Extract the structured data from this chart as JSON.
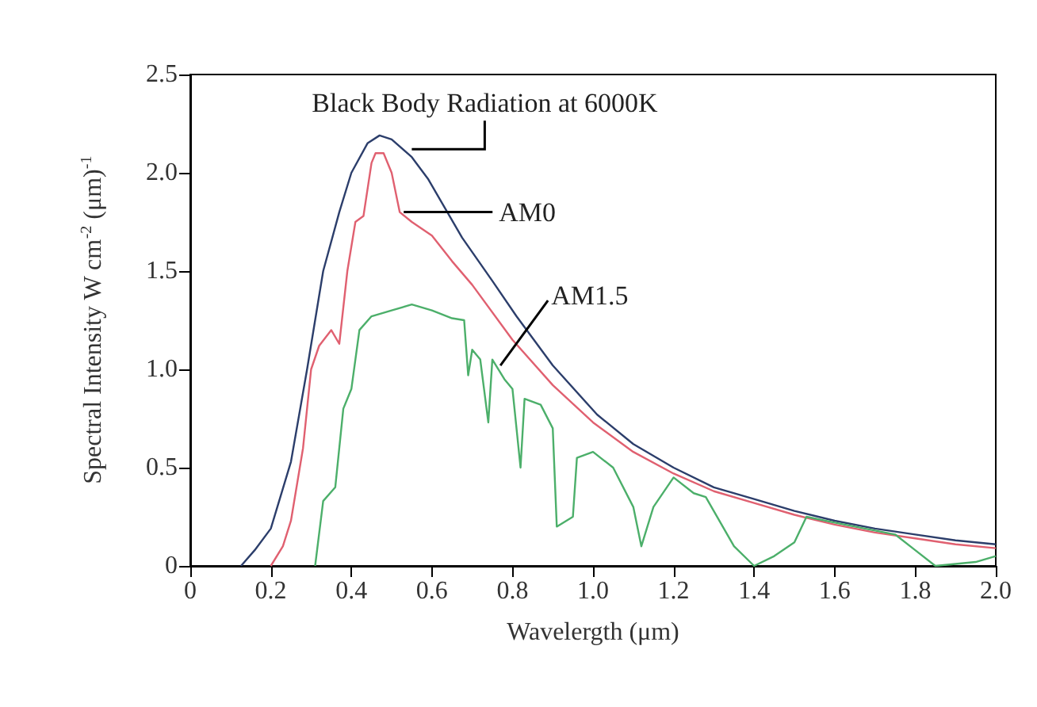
{
  "chart_data": {
    "type": "line",
    "xlabel": "Wavelergth (μm)",
    "ylabel": "Spectral Intensity W cm$^{-2}$ (μm)$^{-1}$",
    "xlim": [
      0,
      2.0
    ],
    "ylim": [
      0,
      2.5
    ],
    "xticks": [
      0,
      0.2,
      0.4,
      0.6,
      0.8,
      {
        "value": 1.0,
        "label": "1.0"
      },
      1.2,
      1.4,
      1.6,
      1.8,
      {
        "value": 2.0,
        "label": "2.0"
      }
    ],
    "yticks": [
      0,
      0.5,
      {
        "value": 1.0,
        "label": "1.0"
      },
      1.5,
      {
        "value": 2.0,
        "label": "2.0"
      },
      2.5
    ],
    "grid": false,
    "marker": "none",
    "line_style": "solid",
    "series": [
      {
        "color": "#2c3e6b",
        "x": [
          0.126,
          0.16,
          0.2,
          0.25,
          0.29,
          0.33,
          0.37,
          0.4,
          0.44,
          0.47,
          0.5,
          0.55,
          0.59,
          0.675,
          0.75,
          0.81,
          0.9,
          1.01,
          1.1,
          1.2,
          1.3,
          1.4,
          1.5,
          1.6,
          1.7,
          1.8,
          1.9,
          2.0
        ],
        "values": [
          0,
          0.08,
          0.19,
          0.53,
          1.0,
          1.5,
          1.8,
          2.0,
          2.15,
          2.19,
          2.17,
          2.08,
          1.97,
          1.67,
          1.45,
          1.27,
          1.02,
          0.77,
          0.62,
          0.5,
          0.4,
          0.34,
          0.28,
          0.23,
          0.19,
          0.16,
          0.13,
          0.11
        ]
      },
      {
        "color": "#e06070",
        "x": [
          0.2,
          0.23,
          0.25,
          0.28,
          0.3,
          0.32,
          0.35,
          0.37,
          0.39,
          0.41,
          0.43,
          0.45,
          0.46,
          0.48,
          0.5,
          0.52,
          0.55,
          0.6,
          0.65,
          0.7,
          0.8,
          0.9,
          1.0,
          1.1,
          1.2,
          1.3,
          1.4,
          1.5,
          1.6,
          1.7,
          1.8,
          1.9,
          2.0
        ],
        "values": [
          0,
          0.1,
          0.23,
          0.6,
          1.0,
          1.12,
          1.2,
          1.13,
          1.5,
          1.75,
          1.78,
          2.05,
          2.1,
          2.1,
          2.0,
          1.8,
          1.75,
          1.68,
          1.55,
          1.43,
          1.15,
          0.92,
          0.73,
          0.58,
          0.47,
          0.38,
          0.32,
          0.26,
          0.21,
          0.17,
          0.14,
          0.11,
          0.09
        ]
      },
      {
        "color": "#4caf6a",
        "x": [
          0.31,
          0.33,
          0.36,
          0.38,
          0.4,
          0.42,
          0.45,
          0.5,
          0.55,
          0.6,
          0.65,
          0.68,
          0.69,
          0.7,
          0.72,
          0.74,
          0.75,
          0.78,
          0.8,
          0.82,
          0.83,
          0.87,
          0.9,
          0.91,
          0.95,
          0.96,
          1.0,
          1.05,
          1.1,
          1.12,
          1.15,
          1.2,
          1.25,
          1.28,
          1.35,
          1.4,
          1.45,
          1.5,
          1.53,
          1.6,
          1.75,
          1.8,
          1.85,
          1.95,
          2.0
        ],
        "values": [
          0,
          0.33,
          0.4,
          0.8,
          0.9,
          1.2,
          1.27,
          1.3,
          1.33,
          1.3,
          1.26,
          1.25,
          0.97,
          1.1,
          1.05,
          0.73,
          1.05,
          0.95,
          0.9,
          0.5,
          0.85,
          0.82,
          0.7,
          0.2,
          0.25,
          0.55,
          0.58,
          0.5,
          0.3,
          0.1,
          0.3,
          0.45,
          0.37,
          0.35,
          0.1,
          0,
          0.05,
          0.12,
          0.25,
          0.22,
          0.16,
          0.08,
          0,
          0.02,
          0.05
        ]
      }
    ],
    "annotations": [
      {
        "text": "Black Body Radiation at 6000K",
        "x": 0.55,
        "y": 2.12
      },
      {
        "text": "AM0",
        "x": 0.53,
        "y": 1.8
      },
      {
        "text": "AM1.5",
        "x": 0.77,
        "y": 1.02
      }
    ]
  }
}
